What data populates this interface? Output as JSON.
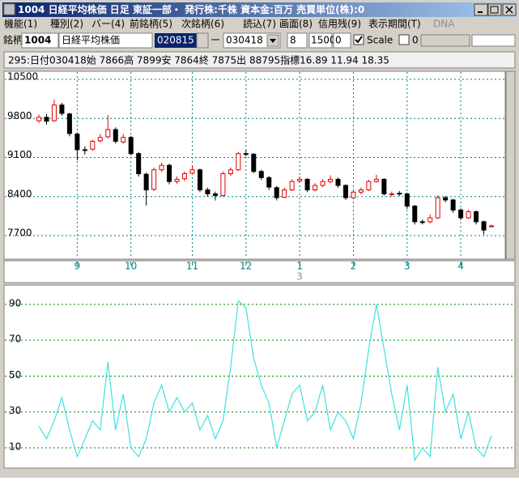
{
  "window": {
    "title": "1004 日経平均株価  日足  東証一部・  発行株:千株  資本金:百万  売買単位(株):0",
    "menu": [
      "機能(1)",
      "種別(2)",
      "バー(4)",
      "前銘柄(5)",
      "次銘柄(6)",
      "読込(7)",
      "画面(8)",
      "信用残(9)",
      "表示期間(T)",
      "DNA"
    ],
    "toolbar": {
      "label": "銘柄",
      "code": "1004",
      "name": "日経平均株価",
      "from": "020815",
      "dash": "ー",
      "to": "030418",
      "field1": "8",
      "field2": "1500",
      "field3": "0",
      "scale": "Scale",
      "field4": "0"
    },
    "info": "295:日付030418始 7866高 7899安 7864終 7875出 88795指標16.89  11.94  18.35"
  },
  "chart_data": [
    {
      "type": "candlestick",
      "categories": [
        null,
        null,
        null,
        null,
        null,
        "9",
        null,
        null,
        null,
        null,
        null,
        null,
        "10",
        null,
        null,
        null,
        null,
        null,
        null,
        null,
        "11",
        null,
        null,
        null,
        null,
        null,
        null,
        "12",
        null,
        null,
        null,
        null,
        null,
        null,
        "1",
        null,
        null,
        null,
        null,
        null,
        null,
        "2",
        null,
        null,
        null,
        null,
        null,
        null,
        "3",
        null,
        null,
        null,
        null,
        null,
        null,
        "4",
        null,
        null,
        null,
        null
      ],
      "x_note": "3",
      "open": [
        9760,
        9820,
        9760,
        10040,
        9880,
        9520,
        9240,
        9250,
        9400,
        9470,
        9600,
        9380,
        9460,
        9170,
        8800,
        8530,
        8880,
        8960,
        8670,
        8720,
        8820,
        8880,
        8520,
        8450,
        8420,
        8810,
        8880,
        9170,
        9160,
        8850,
        8740,
        8560,
        8390,
        8520,
        8680,
        8710,
        8520,
        8600,
        8670,
        8710,
        8600,
        8380,
        8480,
        8520,
        8670,
        8710,
        8440,
        8460,
        8450,
        8230,
        7950,
        7950,
        8020,
        8380,
        8340,
        8160,
        8020,
        8130,
        7950,
        7866
      ],
      "high": [
        9870,
        9880,
        10140,
        10080,
        9900,
        9550,
        9300,
        9420,
        9520,
        9860,
        9640,
        9520,
        9490,
        9200,
        8830,
        8920,
        9010,
        8990,
        8760,
        8850,
        8960,
        8900,
        8560,
        8490,
        8850,
        8920,
        9200,
        9230,
        9180,
        8880,
        8770,
        8590,
        8560,
        8710,
        8760,
        8730,
        8640,
        8710,
        8780,
        8740,
        8620,
        8510,
        8560,
        8700,
        8790,
        8730,
        8490,
        8500,
        8470,
        8250,
        7990,
        8080,
        8420,
        8410,
        8360,
        8190,
        8170,
        8150,
        7970,
        7899
      ],
      "low": [
        9720,
        9690,
        9740,
        9850,
        9480,
        9050,
        9150,
        9220,
        9370,
        9440,
        9350,
        9350,
        9140,
        8760,
        8240,
        8500,
        8840,
        8620,
        8630,
        8680,
        8790,
        8480,
        8400,
        8330,
        8400,
        8770,
        8860,
        9120,
        8820,
        8700,
        8520,
        8330,
        8370,
        8500,
        8650,
        8480,
        8490,
        8570,
        8640,
        8560,
        8340,
        8350,
        8440,
        8500,
        8650,
        8420,
        8400,
        8410,
        8180,
        7900,
        7900,
        7920,
        8000,
        8300,
        8110,
        7980,
        8000,
        7900,
        7720,
        7864
      ],
      "close": [
        9820,
        9750,
        10040,
        9890,
        9530,
        9240,
        9240,
        9390,
        9460,
        9600,
        9390,
        9460,
        9170,
        8810,
        8520,
        8880,
        8960,
        8670,
        8710,
        8810,
        8880,
        8520,
        8450,
        8420,
        8810,
        8880,
        9170,
        9170,
        8850,
        8740,
        8570,
        8380,
        8520,
        8670,
        8710,
        8520,
        8600,
        8670,
        8710,
        8600,
        8380,
        8480,
        8520,
        8670,
        8710,
        8450,
        8450,
        8450,
        8230,
        7950,
        7950,
        8020,
        8380,
        8340,
        8160,
        8020,
        8130,
        7950,
        7800,
        7875
      ],
      "ylim": [
        7280,
        10645
      ],
      "yticks": [
        10500,
        9800,
        9100,
        8400,
        7700
      ],
      "grid": true,
      "up_color": "#e00000",
      "down_color": "#000000",
      "grid_color": "#008080",
      "x_label_color": "#008080"
    },
    {
      "type": "line",
      "values": [
        22,
        15,
        25,
        38,
        20,
        5,
        15,
        25,
        20,
        58,
        20,
        40,
        10,
        5,
        15,
        35,
        45,
        30,
        38,
        30,
        35,
        20,
        28,
        15,
        25,
        55,
        92,
        88,
        60,
        45,
        35,
        10,
        25,
        40,
        45,
        25,
        30,
        45,
        20,
        30,
        25,
        15,
        35,
        65,
        90,
        65,
        40,
        20,
        45,
        3,
        10,
        5,
        55,
        30,
        40,
        15,
        30,
        10,
        5,
        16.89
      ],
      "color": "#40e0e0",
      "ylim": [
        -1.3,
        100.8
      ],
      "yticks": [
        90,
        70,
        50,
        30,
        10
      ],
      "grid": true,
      "grid_color": "#008000"
    }
  ]
}
